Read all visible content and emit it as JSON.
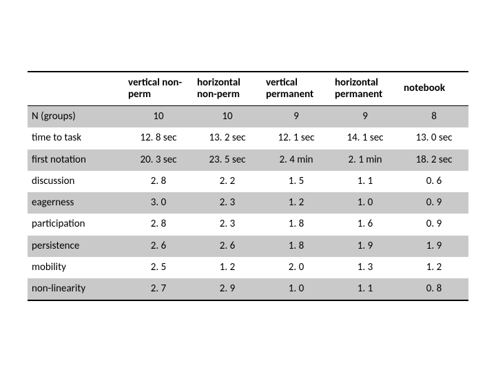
{
  "table": {
    "type": "table",
    "background_color": "#ffffff",
    "row_shade_color": "#c9c9c9",
    "border_color": "#000000",
    "font_family": "Calibri",
    "header_fontsize": 15,
    "cell_fontsize": 15,
    "column_headers": [
      "",
      "vertical non-perm",
      "horizontal non-perm",
      "vertical permanent",
      "horizontal permanent",
      "notebook"
    ],
    "rows": [
      {
        "label": "N (groups)",
        "shaded": true,
        "cells": [
          "10",
          "10",
          "9",
          "9",
          "8"
        ]
      },
      {
        "label": "time to task",
        "shaded": false,
        "cells": [
          "12. 8 sec",
          "13. 2 sec",
          "12. 1 sec",
          "14. 1 sec",
          "13. 0 sec"
        ]
      },
      {
        "label": "first notation",
        "shaded": true,
        "cells": [
          "20. 3 sec",
          "23. 5 sec",
          "2. 4 min",
          "2. 1 min",
          "18. 2 sec"
        ]
      },
      {
        "label": "discussion",
        "shaded": false,
        "cells": [
          "2. 8",
          "2. 2",
          "1. 5",
          "1. 1",
          "0. 6"
        ]
      },
      {
        "label": "eagerness",
        "shaded": true,
        "cells": [
          "3. 0",
          "2. 3",
          "1. 2",
          "1. 0",
          "0. 9"
        ]
      },
      {
        "label": "participation",
        "shaded": false,
        "cells": [
          "2. 8",
          "2. 3",
          "1. 8",
          "1. 6",
          "0. 9"
        ]
      },
      {
        "label": "persistence",
        "shaded": true,
        "cells": [
          "2. 6",
          "2. 6",
          "1. 8",
          "1. 9",
          "1. 9"
        ]
      },
      {
        "label": "mobility",
        "shaded": false,
        "cells": [
          "2. 5",
          "1. 2",
          "2. 0",
          "1. 3",
          "1. 2"
        ]
      },
      {
        "label": "non-linearity",
        "shaded": true,
        "cells": [
          "2. 7",
          "2. 9",
          "1. 0",
          "1. 1",
          "0. 8"
        ]
      }
    ]
  }
}
